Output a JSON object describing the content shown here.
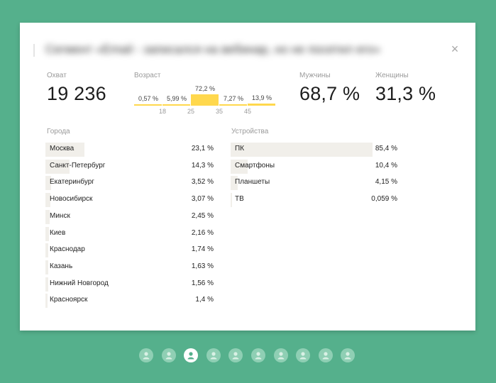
{
  "segment": {
    "title": "Сегмент «Email - записался на вебинар, но не посетил его»",
    "close_glyph": "×"
  },
  "stats": {
    "reach_label": "Охват",
    "reach_value": "19 236",
    "age_label": "Возраст",
    "male_label": "Мужчины",
    "male_value": "68,7 %",
    "female_label": "Женщины",
    "female_value": "31,3 %"
  },
  "age_chart": {
    "type": "bar",
    "bars": [
      {
        "label": "0,57 %",
        "value": 0.57
      },
      {
        "label": "5,99 %",
        "value": 5.99
      },
      {
        "label": "72,2 %",
        "value": 72.2
      },
      {
        "label": "7,27 %",
        "value": 7.27
      },
      {
        "label": "13,9 %",
        "value": 13.9
      }
    ],
    "ticks": [
      "18",
      "25",
      "35",
      "45"
    ],
    "bar_color": "#ffd84d"
  },
  "cities": {
    "title": "Города",
    "items": [
      {
        "name": "Москва",
        "percent": "23,1 %",
        "value": 23.1
      },
      {
        "name": "Санкт-Петербург",
        "percent": "14,3 %",
        "value": 14.3
      },
      {
        "name": "Екатеринбург",
        "percent": "3,52 %",
        "value": 3.52
      },
      {
        "name": "Новосибирск",
        "percent": "3,07 %",
        "value": 3.07
      },
      {
        "name": "Минск",
        "percent": "2,45 %",
        "value": 2.45
      },
      {
        "name": "Киев",
        "percent": "2,16 %",
        "value": 2.16
      },
      {
        "name": "Краснодар",
        "percent": "1,74 %",
        "value": 1.74
      },
      {
        "name": "Казань",
        "percent": "1,63 %",
        "value": 1.63
      },
      {
        "name": "Нижний Новгород",
        "percent": "1,56 %",
        "value": 1.56
      },
      {
        "name": "Красноярск",
        "percent": "1,4 %",
        "value": 1.4
      }
    ]
  },
  "devices": {
    "title": "Устройства",
    "items": [
      {
        "name": "ПК",
        "percent": "85,4 %",
        "value": 85.4
      },
      {
        "name": "Смартфоны",
        "percent": "10,4 %",
        "value": 10.4
      },
      {
        "name": "Планшеты",
        "percent": "4,15 %",
        "value": 4.15
      },
      {
        "name": "ТВ",
        "percent": "0,059 %",
        "value": 0.059
      }
    ]
  },
  "pager": {
    "count": 10,
    "active_index": 2,
    "icon": "person-icon"
  },
  "colors": {
    "background": "#55b08c",
    "row_fill": "#f1efea",
    "accent": "#ffd84d"
  }
}
